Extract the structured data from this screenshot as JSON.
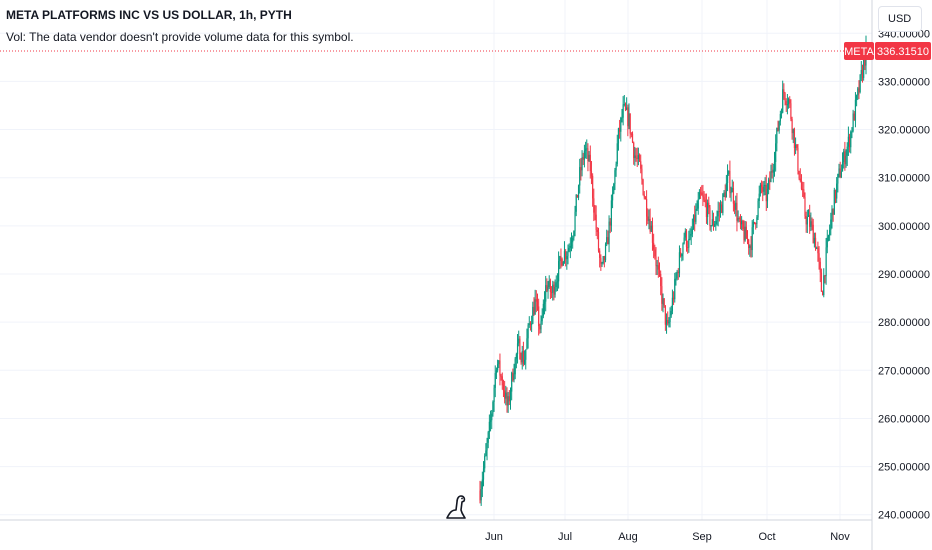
{
  "legend": {
    "title": "META PLATFORMS INC VS US DOLLAR, 1h, PYTH",
    "volume_note": "Vol: The data vendor doesn't provide volume data for this symbol."
  },
  "currency_button": "USD",
  "price_tag": {
    "symbol": "META",
    "value": "336.31510",
    "color": "#f23645"
  },
  "colors": {
    "up": "#089981",
    "down": "#f23645",
    "grid": "#f0f3fa",
    "text": "#131722"
  },
  "chart_data": {
    "type": "candlestick",
    "symbol": "META",
    "interval": "1h",
    "ylim": [
      236,
      344
    ],
    "y_ticks": [
      "240.00000",
      "250.00000",
      "260.00000",
      "270.00000",
      "280.00000",
      "290.00000",
      "300.00000",
      "310.00000",
      "320.00000",
      "330.00000",
      "340.00000"
    ],
    "x_ticks": [
      "Jun",
      "Jul",
      "Aug",
      "Sep",
      "Oct",
      "Nov"
    ],
    "last_price": 336.3151,
    "series": [
      {
        "label": "Jun",
        "values": [
          245,
          252,
          260,
          272,
          268,
          262,
          270,
          275
        ]
      },
      {
        "label": "",
        "values": [
          272,
          280,
          284,
          278,
          288,
          286,
          290,
          294
        ]
      },
      {
        "label": "Jul",
        "values": [
          295,
          300,
          310,
          316,
          312,
          300,
          290,
          296,
          305
        ]
      },
      {
        "label": "Aug",
        "values": [
          318,
          324,
          322,
          315,
          312,
          305,
          300,
          292,
          285
        ]
      },
      {
        "label": "",
        "values": [
          278,
          285,
          292,
          298,
          296,
          302,
          306,
          304,
          300,
          302
        ]
      },
      {
        "label": "Sep",
        "values": [
          305,
          310,
          306,
          300,
          298,
          296,
          302,
          308,
          306
        ]
      },
      {
        "label": "Oct",
        "values": [
          312,
          320,
          328,
          326,
          318,
          310,
          302,
          300,
          296
        ]
      },
      {
        "label": "Nov",
        "values": [
          286,
          296,
          304,
          310,
          314,
          318,
          324,
          330,
          336.3
        ]
      }
    ]
  }
}
